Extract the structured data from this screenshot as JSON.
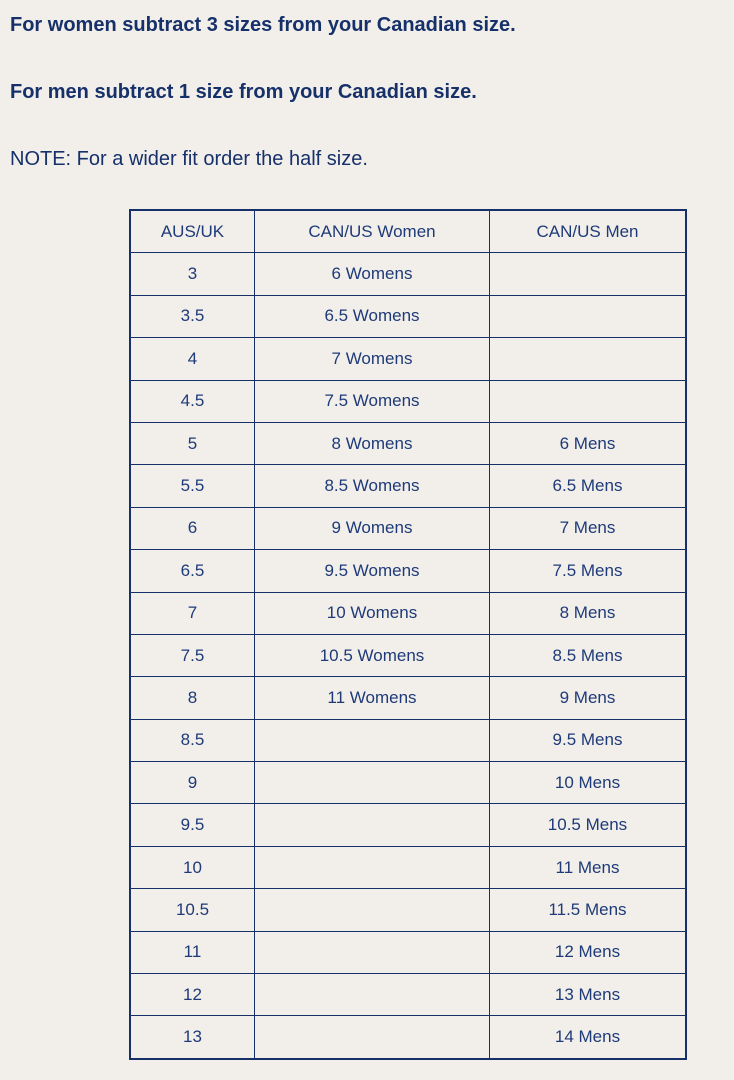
{
  "notes": {
    "women": "For women subtract 3 sizes from your Canadian size.",
    "men": "For men subtract 1 size from your Canadian size.",
    "note": "NOTE: For a wider fit order the half size."
  },
  "table": {
    "headers": [
      "AUS/UK",
      "CAN/US Women",
      "CAN/US Men"
    ],
    "rows": [
      [
        "3",
        "6 Womens",
        ""
      ],
      [
        "3.5",
        "6.5 Womens",
        ""
      ],
      [
        "4",
        "7 Womens",
        ""
      ],
      [
        "4.5",
        "7.5 Womens",
        ""
      ],
      [
        "5",
        "8 Womens",
        "6 Mens"
      ],
      [
        "5.5",
        "8.5 Womens",
        "6.5 Mens"
      ],
      [
        "6",
        "9 Womens",
        "7 Mens"
      ],
      [
        "6.5",
        "9.5 Womens",
        "7.5 Mens"
      ],
      [
        "7",
        "10 Womens",
        "8 Mens"
      ],
      [
        "7.5",
        "10.5 Womens",
        "8.5 Mens"
      ],
      [
        "8",
        "11 Womens",
        "9 Mens"
      ],
      [
        "8.5",
        "",
        "9.5 Mens"
      ],
      [
        "9",
        "",
        "10 Mens"
      ],
      [
        "9.5",
        "",
        "10.5 Mens"
      ],
      [
        "10",
        "",
        "11 Mens"
      ],
      [
        "10.5",
        "",
        "11.5 Mens"
      ],
      [
        "11",
        "",
        "12 Mens"
      ],
      [
        "12",
        "",
        "13 Mens"
      ],
      [
        "13",
        "",
        "14 Mens"
      ]
    ]
  },
  "colors": {
    "text": "#16306a",
    "background": "#f2efea"
  }
}
